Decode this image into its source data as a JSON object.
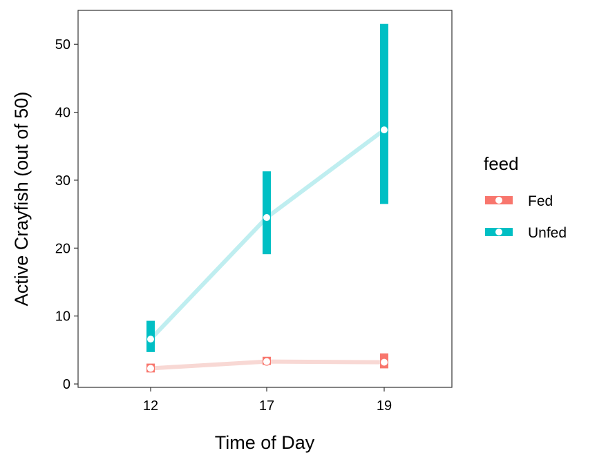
{
  "chart_data": {
    "type": "line",
    "xlabel": "Time of Day",
    "ylabel": "Active Crayfish (out of 50)",
    "categories": [
      "12",
      "17",
      "19"
    ],
    "ylim": [
      -0.5,
      55
    ],
    "yticks": [
      0,
      10,
      20,
      30,
      40,
      50
    ],
    "grid": false,
    "legend": {
      "title": "feed",
      "placement": "right"
    },
    "series": [
      {
        "name": "Fed",
        "color": "#F8766D",
        "line_color": "#F8D8D4",
        "values": [
          2.3,
          3.3,
          3.2
        ],
        "lower": [
          1.7,
          2.8,
          2.3
        ],
        "upper": [
          3.0,
          4.0,
          4.5
        ]
      },
      {
        "name": "Unfed",
        "color": "#00BFC4",
        "line_color": "#BFEEF0",
        "values": [
          6.6,
          24.5,
          37.4
        ],
        "lower": [
          4.7,
          19.1,
          26.5
        ],
        "upper": [
          9.3,
          31.3,
          53.0
        ]
      }
    ]
  }
}
